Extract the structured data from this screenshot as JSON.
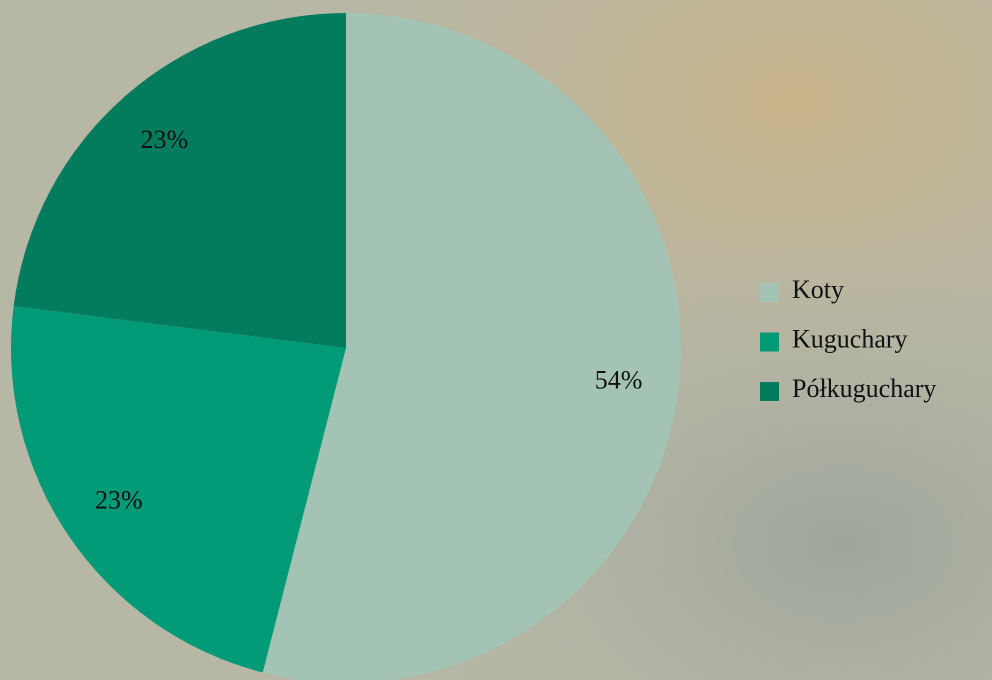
{
  "chart_data": {
    "type": "pie",
    "categories": [
      "Koty",
      "Kuguchary",
      "Półkuguchary"
    ],
    "values": [
      54,
      23,
      23
    ],
    "value_labels": [
      "54%",
      "23%",
      "23%"
    ],
    "colors": [
      "#a3c4b4",
      "#009a77",
      "#037c5e"
    ],
    "legend": "right"
  }
}
